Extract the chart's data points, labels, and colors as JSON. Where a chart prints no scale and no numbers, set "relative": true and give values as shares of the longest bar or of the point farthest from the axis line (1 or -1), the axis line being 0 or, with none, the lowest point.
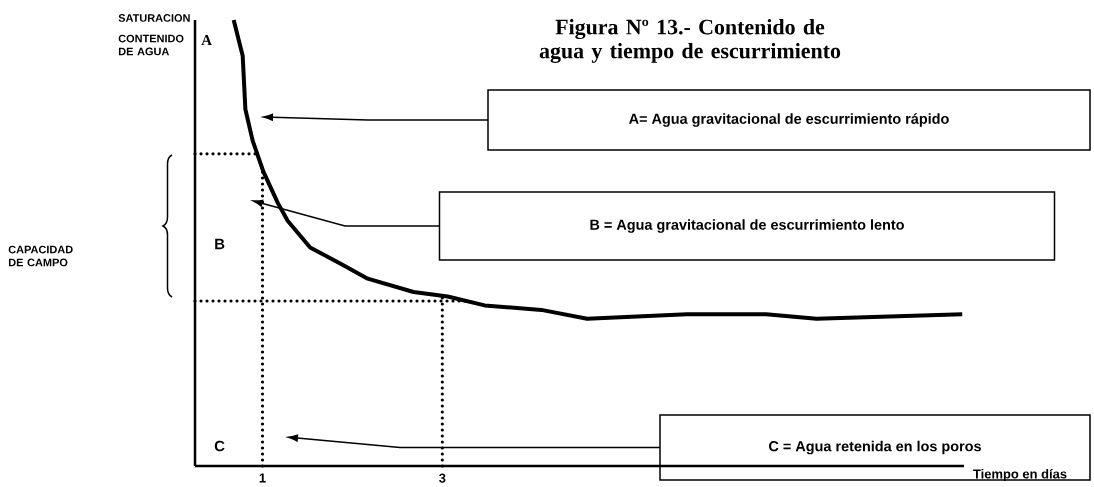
{
  "chart_data": {
    "type": "line",
    "title": "Figura Nº 13.- Contenido de agua y tiempo de escurrimiento",
    "xlabel": "Tiempo en días",
    "relative": true,
    "color": "#000000",
    "marker": "none",
    "line_style": "solid",
    "xlim": [
      0.25,
      8.8
    ],
    "xticks": [
      1,
      3
    ],
    "x": [
      0.68,
      0.78,
      0.81,
      0.89,
      1.01,
      1.17,
      1.28,
      1.53,
      1.9,
      2.17,
      2.68,
      3.06,
      3.47,
      4.1,
      4.61,
      5.72,
      6.6,
      7.16,
      8.78
    ],
    "values": [
      1.0,
      0.92,
      0.8,
      0.73,
      0.66,
      0.59,
      0.55,
      0.49,
      0.45,
      0.42,
      0.39,
      0.38,
      0.36,
      0.35,
      0.33,
      0.34,
      0.34,
      0.33,
      0.34
    ],
    "ref_lines": [
      {
        "axis": "x",
        "value": 1,
        "line_style": "dotted"
      },
      {
        "axis": "x",
        "value": 3,
        "line_style": "dotted"
      },
      {
        "axis": "y",
        "value": 0.7,
        "line_style": "dotted"
      },
      {
        "axis": "y",
        "value": 0.37,
        "line_style": "dotted"
      }
    ],
    "annotations": [
      "SATURACION",
      "CONTENIDO DE AGUA",
      "CAPACIDAD DE CAMPO",
      "A",
      "B",
      "C",
      "A= Agua gravitacional de escurrimiento rápido",
      "B = Agua gravitacional de escurrimiento lento",
      "C = Agua retenida en los poros"
    ]
  }
}
